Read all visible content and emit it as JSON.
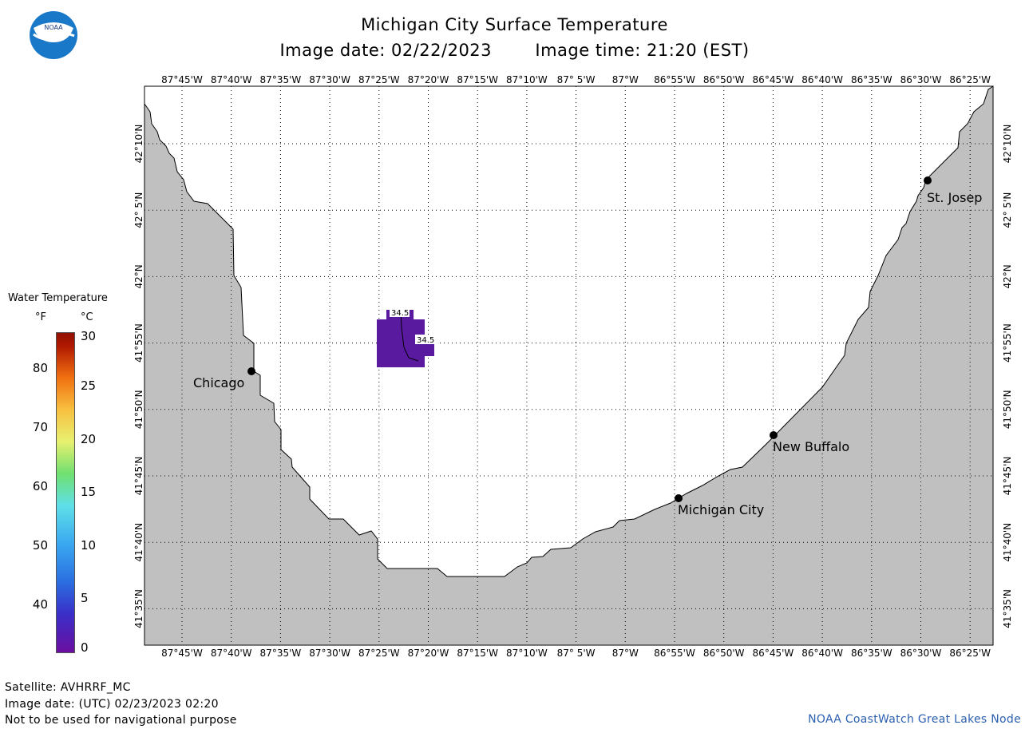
{
  "title": "Michigan City Surface Temperature",
  "subtitle_date": "Image date: 02/22/2023",
  "subtitle_time": "Image time: 21:20 (EST)",
  "logo_text": "NOAA",
  "longitudes": [
    "87°45'W",
    "87°40'W",
    "87°35'W",
    "87°30'W",
    "87°25'W",
    "87°20'W",
    "87°15'W",
    "87°10'W",
    "87° 5'W",
    "87°W",
    "86°55'W",
    "86°50'W",
    "86°45'W",
    "86°40'W",
    "86°35'W",
    "86°30'W",
    "86°25'W"
  ],
  "latitudes": [
    "42°10'N",
    "42° 5'N",
    "42°N",
    "41°55'N",
    "41°50'N",
    "41°45'N",
    "41°40'N",
    "41°35'N"
  ],
  "cities": {
    "chicago": "Chicago",
    "st_joseph": "St. Josep",
    "new_buffalo": "New Buffalo",
    "michigan_city": "Michigan City"
  },
  "contour_labels": [
    "34.5",
    "34.5"
  ],
  "legend": {
    "title": "Water Temperature",
    "unit_f": "°F",
    "unit_c": "°C",
    "ticks_f": [
      "80",
      "70",
      "60",
      "50",
      "40"
    ],
    "ticks_c": [
      "30",
      "25",
      "20",
      "15",
      "10",
      "5",
      "0"
    ]
  },
  "footer": {
    "satellite": "Satellite: AVHRRF_MC",
    "utc_date": "Image date: (UTC) 02/23/2023  02:20",
    "disclaimer": "Not to be used for navigational purpose",
    "credit": "NOAA CoastWatch Great Lakes Node"
  },
  "colors": {
    "land": "#c0c0c0",
    "water": "#ffffff",
    "sst_patch": "#5a1aa0",
    "credit": "#2b5fb0"
  }
}
